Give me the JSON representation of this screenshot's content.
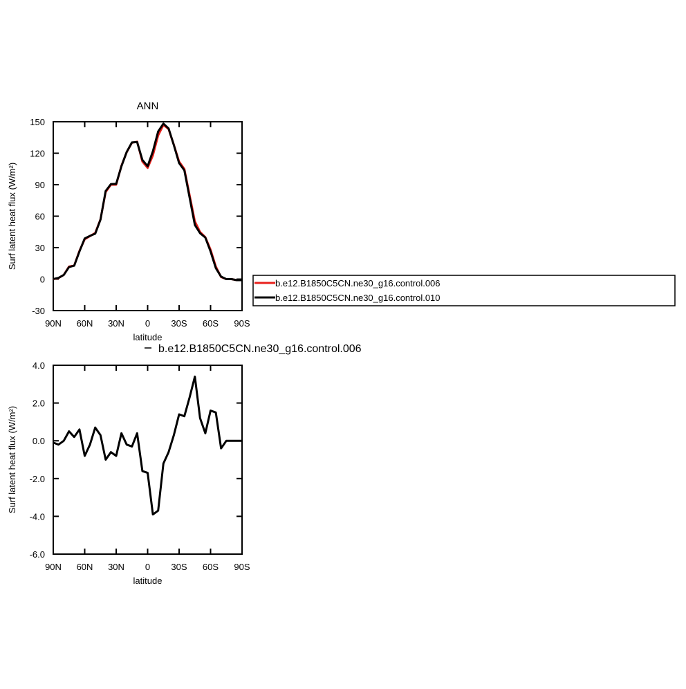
{
  "chart_data": [
    {
      "type": "line",
      "title": "ANN",
      "x_label": "latitude",
      "y_label": "Surf latent heat flux (W/m²)",
      "x": [
        90,
        85,
        80,
        75,
        70,
        65,
        60,
        55,
        50,
        45,
        40,
        35,
        30,
        25,
        20,
        15,
        10,
        5,
        0,
        -5,
        -10,
        -15,
        -20,
        -25,
        -30,
        -35,
        -40,
        -45,
        -50,
        -55,
        -60,
        -65,
        -70,
        -75,
        -80,
        -85,
        -90
      ],
      "xlim": [
        90,
        -90
      ],
      "xticks": [
        {
          "value": 90,
          "label": "90N"
        },
        {
          "value": 60,
          "label": "60N"
        },
        {
          "value": 30,
          "label": "30N"
        },
        0,
        {
          "value": -30,
          "label": "30S"
        },
        {
          "value": -60,
          "label": "60S"
        },
        {
          "value": -90,
          "label": "90S"
        }
      ],
      "ylim": [
        -30,
        150
      ],
      "yticks": [
        -30,
        0,
        30,
        60,
        90,
        120,
        150
      ],
      "legend": "outside-right",
      "series": [
        {
          "name": "b.e12.B1850C5CN.ne30_g16.control.006",
          "color": "#e8201c",
          "values": [
            0,
            1,
            4,
            12,
            13,
            27,
            38,
            41,
            44,
            57,
            83,
            90,
            90,
            108,
            121,
            130,
            131,
            112,
            106,
            118,
            137,
            147,
            143,
            128,
            112,
            105,
            80,
            55,
            45,
            40,
            28,
            12,
            2,
            0,
            0,
            -1,
            -1
          ]
        },
        {
          "name": "b.e12.B1850C5CN.ne30_g16.control.010",
          "color": "#000000",
          "values": [
            0.1,
            1.2,
            4,
            11.5,
            12.8,
            26.4,
            38.8,
            41.2,
            43.3,
            56.7,
            84,
            90.6,
            90.8,
            107.6,
            121.2,
            130.3,
            130.6,
            113.6,
            107.7,
            121.9,
            140.7,
            148.2,
            143.6,
            127.7,
            110.6,
            103.7,
            77.7,
            51.6,
            43.8,
            39.6,
            26.4,
            10.5,
            2.4,
            0,
            0,
            -1,
            -1
          ]
        }
      ]
    },
    {
      "type": "line",
      "x_label": "latitude",
      "y_label": "Surf latent heat flux (W/m²)",
      "x": [
        90,
        85,
        80,
        75,
        70,
        65,
        60,
        55,
        50,
        45,
        40,
        35,
        30,
        25,
        20,
        15,
        10,
        5,
        0,
        -5,
        -10,
        -15,
        -20,
        -25,
        -30,
        -35,
        -40,
        -45,
        -50,
        -55,
        -60,
        -65,
        -70,
        -75,
        -80,
        -85,
        -90
      ],
      "xlim": [
        90,
        -90
      ],
      "xticks": [
        {
          "value": 90,
          "label": "90N"
        },
        {
          "value": 60,
          "label": "60N"
        },
        {
          "value": 30,
          "label": "30N"
        },
        0,
        {
          "value": -30,
          "label": "30S"
        },
        {
          "value": -60,
          "label": "60S"
        },
        {
          "value": -90,
          "label": "90S"
        }
      ],
      "ylim": [
        -6,
        4
      ],
      "yticks": [
        {
          "value": -6,
          "label": "-6.0"
        },
        {
          "value": -4,
          "label": "-4.0"
        },
        {
          "value": -2,
          "label": "-2.0"
        },
        {
          "value": 0,
          "label": "0.0"
        },
        {
          "value": 2,
          "label": "2.0"
        },
        {
          "value": 4,
          "label": "4.0"
        }
      ],
      "legend": "top",
      "series": [
        {
          "name": "b.e12.B1850C5CN.ne30_g16.control.006",
          "color": "#000000",
          "values": [
            -0.1,
            -0.2,
            0.0,
            0.5,
            0.2,
            0.6,
            -0.8,
            -0.2,
            0.7,
            0.3,
            -1.0,
            -0.6,
            -0.8,
            0.4,
            -0.2,
            -0.3,
            0.4,
            -1.6,
            -1.7,
            -3.9,
            -3.7,
            -1.2,
            -0.6,
            0.3,
            1.4,
            1.3,
            2.3,
            3.4,
            1.2,
            0.4,
            1.6,
            1.5,
            -0.4,
            0.0,
            0.0,
            0.0,
            0.0
          ]
        }
      ]
    }
  ]
}
